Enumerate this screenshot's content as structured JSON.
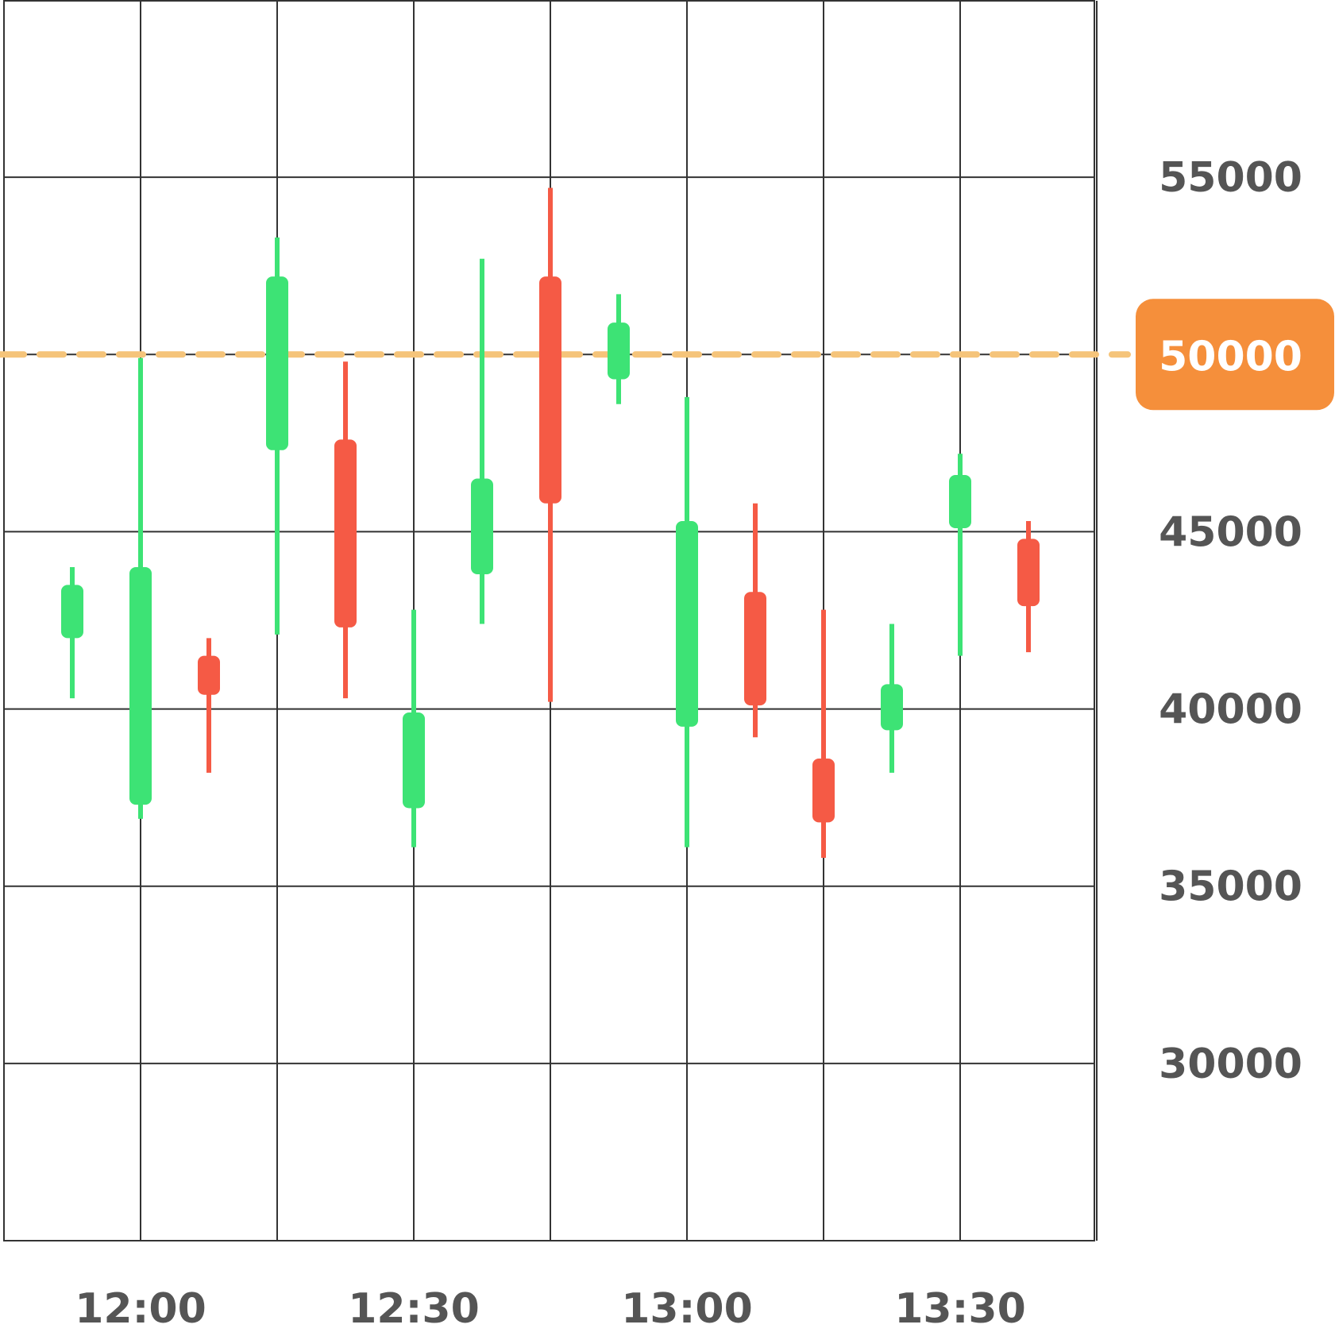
{
  "chart_data": {
    "type": "candlestick",
    "title": "",
    "xlabel": "",
    "ylabel": "",
    "grid": true,
    "y_axis_side": "right",
    "ylim": [
      25000,
      60000
    ],
    "y_ticks": [
      55000,
      50000,
      45000,
      40000,
      35000,
      30000
    ],
    "y_tick_labels": [
      "55000",
      "50000",
      "45000",
      "40000",
      "35000",
      "30000"
    ],
    "x_ticks": [
      "11:45",
      "12:00",
      "12:15",
      "12:30",
      "12:45",
      "13:00",
      "13:15",
      "13:30",
      "13:45"
    ],
    "x_tick_labels": [
      "12:00",
      "12:30",
      "13:00",
      "13:30"
    ],
    "x_tick_label_values": [
      "12:00",
      "12:30",
      "13:00",
      "13:30"
    ],
    "candles": [
      {
        "time": "11:52:30",
        "open": 42000,
        "high": 44000,
        "low": 40300,
        "close": 43500
      },
      {
        "time": "12:00:00",
        "open": 37300,
        "high": 49900,
        "low": 36900,
        "close": 44000
      },
      {
        "time": "12:07:30",
        "open": 41500,
        "high": 42000,
        "low": 38200,
        "close": 40400
      },
      {
        "time": "12:15:00",
        "open": 47300,
        "high": 53300,
        "low": 42100,
        "close": 52200
      },
      {
        "time": "12:22:30",
        "open": 47600,
        "high": 49800,
        "low": 40300,
        "close": 42300
      },
      {
        "time": "12:30:00",
        "open": 37200,
        "high": 42800,
        "low": 36100,
        "close": 39900
      },
      {
        "time": "12:37:30",
        "open": 43800,
        "high": 52700,
        "low": 42400,
        "close": 46500
      },
      {
        "time": "12:45:00",
        "open": 52200,
        "high": 54700,
        "low": 40200,
        "close": 45800
      },
      {
        "time": "12:52:30",
        "open": 49300,
        "high": 51700,
        "low": 48600,
        "close": 50900
      },
      {
        "time": "13:00:00",
        "open": 39500,
        "high": 48800,
        "low": 36100,
        "close": 45300
      },
      {
        "time": "13:07:30",
        "open": 43300,
        "high": 45800,
        "low": 39200,
        "close": 40100
      },
      {
        "time": "13:15:00",
        "open": 38600,
        "high": 42800,
        "low": 35800,
        "close": 36800
      },
      {
        "time": "13:22:30",
        "open": 39400,
        "high": 42400,
        "low": 38200,
        "close": 40700
      },
      {
        "time": "13:30:00",
        "open": 45100,
        "high": 47200,
        "low": 41500,
        "close": 46600
      },
      {
        "time": "13:37:30",
        "open": 44800,
        "high": 45300,
        "low": 41600,
        "close": 42900
      }
    ],
    "current_price": {
      "value": 50000,
      "label": "50000"
    },
    "colors": {
      "up": "#3de375",
      "down": "#f55a45",
      "price_line": "#f5c47a",
      "price_tag": "#f58f3b",
      "grid": "#333333",
      "tick_text": "#555555"
    }
  }
}
